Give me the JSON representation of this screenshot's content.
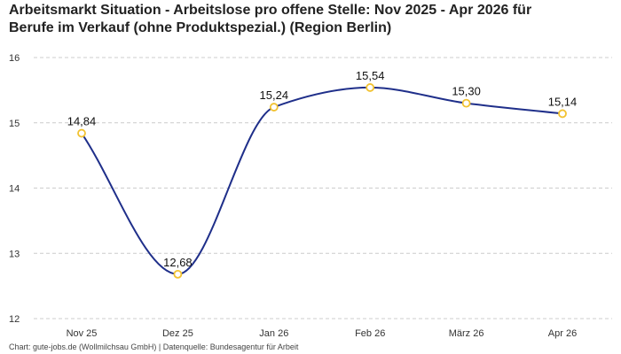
{
  "header": {
    "title_line1": "Arbeitsmarkt Situation - Arbeitslose pro offene Stelle: Nov 2025 - Apr 2026 für",
    "title_line2": "Berufe im Verkauf (ohne Produktspezial.) (Region Berlin)"
  },
  "footer": {
    "source": "Chart: gute-jobs.de (Wollmilchsau GmbH) | Datenquelle: Bundesagentur für Arbeit"
  },
  "colors": {
    "line": "#1f2f8a",
    "marker_stroke": "#f2c230",
    "marker_fill": "#ffffff",
    "grid": "#cccccc"
  },
  "chart_data": {
    "type": "line",
    "categories": [
      "Nov 25",
      "Dez 25",
      "Jan 26",
      "Feb 26",
      "März 26",
      "Apr 26"
    ],
    "series": [
      {
        "values": [
          14.84,
          12.68,
          15.24,
          15.54,
          15.3,
          15.14
        ],
        "labels": [
          "14,84",
          "12,68",
          "15,24",
          "15,54",
          "15,30",
          "15,14"
        ]
      }
    ],
    "yticks": [
      12,
      13,
      14,
      15,
      16
    ],
    "ytick_labels": [
      "12",
      "13",
      "14",
      "15",
      "16"
    ],
    "ylim": [
      12,
      16
    ],
    "grid": true,
    "smooth": true
  }
}
